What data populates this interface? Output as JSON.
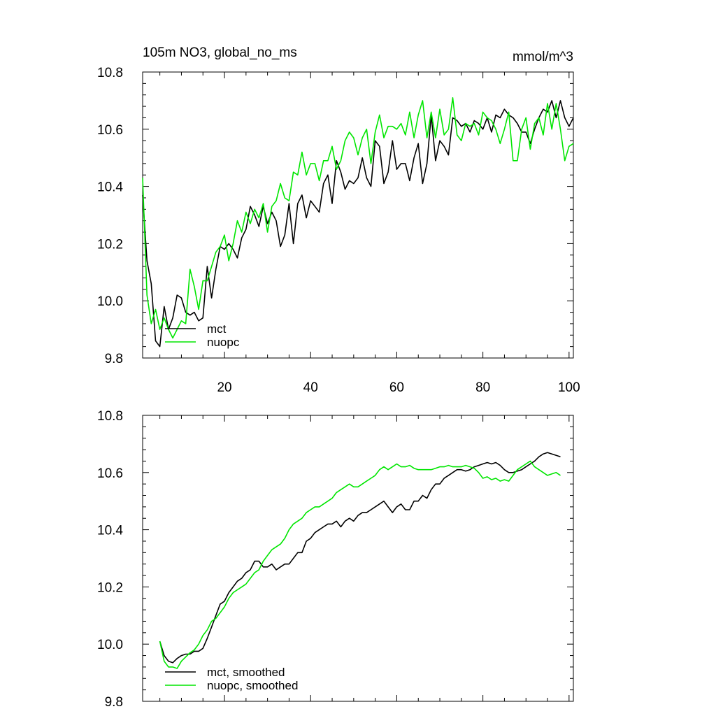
{
  "figure_title": "105m NO3, global_no_ms",
  "units_label": "mmol/m^3",
  "colors": {
    "mct": "#000000",
    "nuopc": "#00e600"
  },
  "chart_data": [
    {
      "type": "line",
      "title": "105m NO3, global_no_ms",
      "units": "mmol/m^3",
      "xlabel": "",
      "ylabel": "",
      "xlim": [
        1,
        101
      ],
      "ylim": [
        9.8,
        10.8
      ],
      "x_ticks": [
        20,
        40,
        60,
        80,
        100
      ],
      "y_ticks": [
        "9.8",
        "10.0",
        "10.2",
        "10.4",
        "10.6",
        "10.8"
      ],
      "grid": false,
      "legend_position": "bottom-left",
      "x": [
        1,
        2,
        3,
        4,
        5,
        6,
        7,
        8,
        9,
        10,
        11,
        12,
        13,
        14,
        15,
        16,
        17,
        18,
        19,
        20,
        21,
        22,
        23,
        24,
        25,
        26,
        27,
        28,
        29,
        30,
        31,
        32,
        33,
        34,
        35,
        36,
        37,
        38,
        39,
        40,
        41,
        42,
        43,
        44,
        45,
        46,
        47,
        48,
        49,
        50,
        51,
        52,
        53,
        54,
        55,
        56,
        57,
        58,
        59,
        60,
        61,
        62,
        63,
        64,
        65,
        66,
        67,
        68,
        69,
        70,
        71,
        72,
        73,
        74,
        75,
        76,
        77,
        78,
        79,
        80,
        81,
        82,
        83,
        84,
        85,
        86,
        87,
        88,
        89,
        90,
        91,
        92,
        93,
        94,
        95,
        96,
        97,
        98,
        99,
        100,
        101
      ],
      "series": [
        {
          "name": "mct",
          "color": "#000000",
          "values": [
            10.37,
            10.14,
            10.06,
            9.86,
            9.84,
            9.98,
            9.9,
            9.94,
            10.02,
            10.01,
            9.96,
            9.95,
            9.96,
            9.93,
            9.94,
            10.12,
            10.01,
            10.11,
            10.19,
            10.18,
            10.2,
            10.18,
            10.15,
            10.22,
            10.25,
            10.33,
            10.3,
            10.26,
            10.33,
            10.27,
            10.31,
            10.28,
            10.19,
            10.23,
            10.34,
            10.2,
            10.34,
            10.37,
            10.29,
            10.35,
            10.33,
            10.31,
            10.41,
            10.44,
            10.34,
            10.49,
            10.45,
            10.39,
            10.42,
            10.41,
            10.43,
            10.5,
            10.43,
            10.4,
            10.56,
            10.54,
            10.41,
            10.45,
            10.56,
            10.46,
            10.48,
            10.48,
            10.42,
            10.5,
            10.55,
            10.41,
            10.48,
            10.65,
            10.49,
            10.56,
            10.54,
            10.51,
            10.64,
            10.63,
            10.61,
            10.62,
            10.59,
            10.63,
            10.62,
            10.6,
            10.64,
            10.59,
            10.65,
            10.64,
            10.67,
            10.65,
            10.64,
            10.62,
            10.59,
            10.59,
            10.55,
            10.6,
            10.64,
            10.67,
            10.66,
            10.7,
            10.64,
            10.7,
            10.64,
            10.61,
            10.64
          ]
        },
        {
          "name": "nuopc",
          "color": "#00e600",
          "values": [
            10.43,
            10.02,
            9.92,
            9.97,
            9.9,
            9.94,
            9.9,
            9.87,
            9.9,
            9.93,
            9.92,
            10.11,
            10.05,
            9.97,
            10.07,
            10.07,
            10.12,
            10.17,
            10.19,
            10.23,
            10.14,
            10.2,
            10.28,
            10.24,
            10.31,
            10.27,
            10.32,
            10.29,
            10.34,
            10.24,
            10.33,
            10.35,
            10.41,
            10.36,
            10.35,
            10.45,
            10.44,
            10.52,
            10.44,
            10.48,
            10.48,
            10.42,
            10.49,
            10.49,
            10.54,
            10.46,
            10.49,
            10.56,
            10.59,
            10.57,
            10.51,
            10.57,
            10.6,
            10.48,
            10.59,
            10.65,
            10.57,
            10.61,
            10.61,
            10.6,
            10.62,
            10.58,
            10.66,
            10.57,
            10.65,
            10.7,
            10.57,
            10.66,
            10.57,
            10.67,
            10.58,
            10.6,
            10.71,
            10.58,
            10.56,
            10.62,
            10.61,
            10.62,
            10.58,
            10.66,
            10.64,
            10.63,
            10.6,
            10.55,
            10.6,
            10.66,
            10.49,
            10.49,
            10.6,
            10.64,
            10.53,
            10.62,
            10.64,
            10.58,
            10.69,
            10.6,
            10.69,
            10.6,
            10.49,
            10.54,
            10.55
          ]
        }
      ]
    },
    {
      "type": "line",
      "title": "",
      "xlabel": "",
      "ylabel": "",
      "xlim": [
        1,
        101
      ],
      "ylim": [
        9.8,
        10.8
      ],
      "y_ticks": [
        "9.8",
        "10.0",
        "10.2",
        "10.4",
        "10.6",
        "10.8"
      ],
      "grid": false,
      "legend_position": "bottom-left",
      "x": [
        5,
        6,
        7,
        8,
        9,
        10,
        11,
        12,
        13,
        14,
        15,
        16,
        17,
        18,
        19,
        20,
        21,
        22,
        23,
        24,
        25,
        26,
        27,
        28,
        29,
        30,
        31,
        32,
        33,
        34,
        35,
        36,
        37,
        38,
        39,
        40,
        41,
        42,
        43,
        44,
        45,
        46,
        47,
        48,
        49,
        50,
        51,
        52,
        53,
        54,
        55,
        56,
        57,
        58,
        59,
        60,
        61,
        62,
        63,
        64,
        65,
        66,
        67,
        68,
        69,
        70,
        71,
        72,
        73,
        74,
        75,
        76,
        77,
        78,
        79,
        80,
        81,
        82,
        83,
        84,
        85,
        86,
        87,
        88,
        89,
        90,
        91,
        92,
        93,
        94,
        95,
        96,
        97,
        98
      ],
      "series": [
        {
          "name": "mct, smoothed",
          "color": "#000000",
          "values": [
            10.01,
            9.96,
            9.94,
            9.935,
            9.95,
            9.96,
            9.965,
            9.965,
            9.975,
            9.975,
            9.985,
            10.02,
            10.06,
            10.1,
            10.14,
            10.15,
            10.18,
            10.2,
            10.22,
            10.23,
            10.25,
            10.26,
            10.29,
            10.29,
            10.27,
            10.27,
            10.28,
            10.26,
            10.27,
            10.28,
            10.28,
            10.3,
            10.32,
            10.32,
            10.36,
            10.37,
            10.39,
            10.4,
            10.41,
            10.42,
            10.42,
            10.43,
            10.41,
            10.43,
            10.44,
            10.43,
            10.45,
            10.46,
            10.46,
            10.47,
            10.48,
            10.49,
            10.5,
            10.48,
            10.46,
            10.48,
            10.49,
            10.47,
            10.47,
            10.5,
            10.5,
            10.52,
            10.51,
            10.54,
            10.56,
            10.56,
            10.58,
            10.59,
            10.6,
            10.61,
            10.61,
            10.605,
            10.61,
            10.62,
            10.625,
            10.63,
            10.635,
            10.63,
            10.635,
            10.625,
            10.61,
            10.6,
            10.6,
            10.605,
            10.61,
            10.62,
            10.63,
            10.64,
            10.655,
            10.665,
            10.67,
            10.665,
            10.66,
            10.655
          ]
        },
        {
          "name": "nuopc, smoothed",
          "color": "#00e600",
          "values": [
            10.01,
            9.94,
            9.92,
            9.92,
            9.915,
            9.94,
            9.955,
            9.97,
            9.98,
            10.0,
            10.03,
            10.05,
            10.08,
            10.09,
            10.11,
            10.13,
            10.16,
            10.18,
            10.19,
            10.2,
            10.21,
            10.23,
            10.25,
            10.26,
            10.29,
            10.31,
            10.33,
            10.34,
            10.35,
            10.37,
            10.4,
            10.42,
            10.43,
            10.44,
            10.46,
            10.47,
            10.48,
            10.48,
            10.49,
            10.5,
            10.51,
            10.53,
            10.54,
            10.55,
            10.56,
            10.55,
            10.55,
            10.56,
            10.57,
            10.58,
            10.59,
            10.61,
            10.62,
            10.61,
            10.62,
            10.63,
            10.62,
            10.62,
            10.625,
            10.615,
            10.61,
            10.61,
            10.61,
            10.61,
            10.615,
            10.62,
            10.62,
            10.625,
            10.62,
            10.62,
            10.62,
            10.625,
            10.62,
            10.615,
            10.6,
            10.58,
            10.585,
            10.575,
            10.58,
            10.57,
            10.575,
            10.57,
            10.59,
            10.61,
            10.62,
            10.63,
            10.64,
            10.62,
            10.61,
            10.6,
            10.59,
            10.595,
            10.6,
            10.59
          ]
        }
      ]
    }
  ]
}
